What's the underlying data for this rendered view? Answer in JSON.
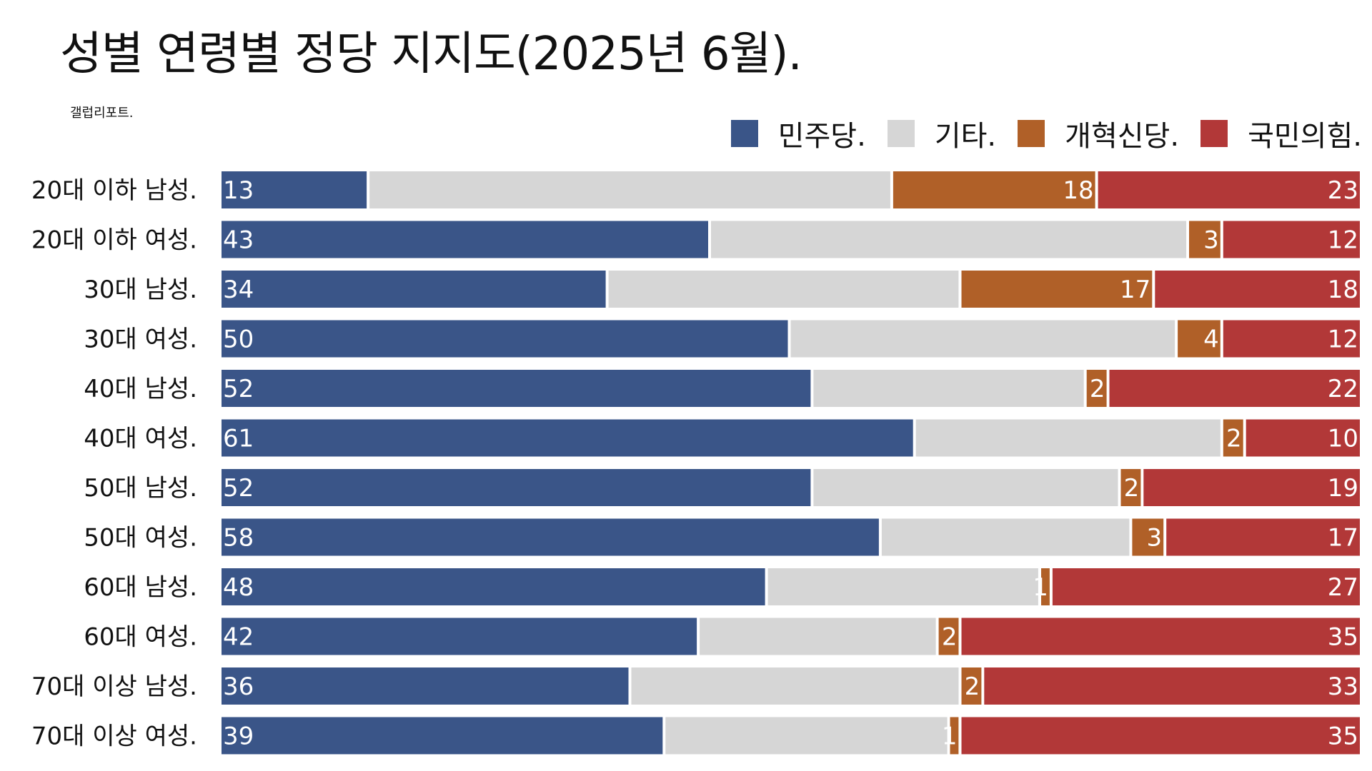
{
  "title": "성별 연령별 정당 지지도(2025년 6월).",
  "source": "갤럽리포트.",
  "legend": [
    {
      "name": "민주당.",
      "color": "#3a5588"
    },
    {
      "name": "기타.",
      "color": "#d6d6d6"
    },
    {
      "name": "개혁신당.",
      "color": "#b06028"
    },
    {
      "name": "국민의힘.",
      "color": "#b23838"
    }
  ],
  "chart_data": {
    "type": "bar",
    "orientation": "horizontal",
    "stacked": true,
    "percent_stacked": true,
    "title": "성별 연령별 정당 지지도(2025년 6월).",
    "source": "갤럽리포트.",
    "legend_position": "top-right",
    "grid": false,
    "categories": [
      "20대 이하 남성.",
      "20대 이하 여성.",
      "30대 남성.",
      "30대 여성.",
      "40대 남성.",
      "40대 여성.",
      "50대 남성.",
      "50대 여성.",
      "60대 남성.",
      "60대 여성.",
      "70대 이상 남성.",
      "70대 이상 여성."
    ],
    "series": [
      {
        "name": "민주당.",
        "color": "#3a5588",
        "values": [
          13,
          43,
          34,
          50,
          52,
          61,
          52,
          58,
          48,
          42,
          36,
          39
        ],
        "labeled": true
      },
      {
        "name": "기타.",
        "color": "#d6d6d6",
        "values": [
          46,
          42,
          31,
          34,
          24,
          27,
          27,
          22,
          24,
          21,
          29,
          25
        ],
        "labeled": false
      },
      {
        "name": "개혁신당.",
        "color": "#b06028",
        "values": [
          18,
          3,
          17,
          4,
          2,
          2,
          2,
          3,
          1,
          2,
          2,
          1
        ],
        "labeled": true
      },
      {
        "name": "국민의힘.",
        "color": "#b23838",
        "values": [
          23,
          12,
          18,
          12,
          22,
          10,
          19,
          17,
          27,
          35,
          33,
          35
        ],
        "labeled": true
      }
    ]
  }
}
